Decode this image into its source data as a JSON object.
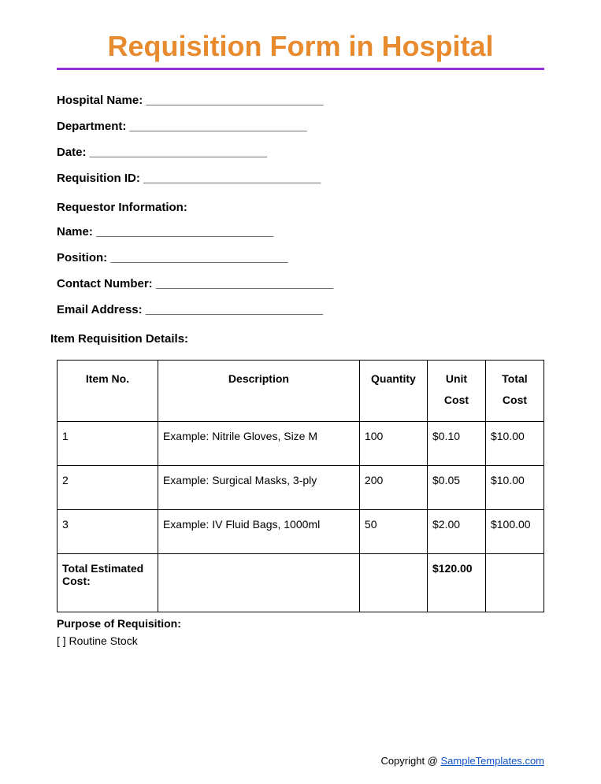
{
  "title": "Requisition Form in Hospital",
  "title_color": "#e88b2e",
  "divider_color": "#9b2fd6",
  "fields": {
    "hospital_name": "Hospital Name: ___________________________",
    "department": "Department: ___________________________",
    "date": "Date: ___________________________",
    "requisition_id": "Requisition ID: ___________________________"
  },
  "requestor": {
    "header": "Requestor Information:",
    "name": "Name: ___________________________",
    "position": "Position: ___________________________",
    "contact": "Contact Number: ___________________________",
    "email": "Email Address: ___________________________"
  },
  "details_header": "Item Requisition Details:",
  "table": {
    "columns": [
      "Item No.",
      "Description",
      "Quantity",
      "Unit Cost",
      "Total Cost"
    ],
    "rows": [
      [
        "1",
        "Example: Nitrile Gloves, Size M",
        "100",
        "$0.10",
        "$10.00"
      ],
      [
        "2",
        "Example: Surgical Masks, 3-ply",
        "200",
        "$0.05",
        "$10.00"
      ],
      [
        "3",
        "Example: IV Fluid Bags, 1000ml",
        "50",
        "$2.00",
        "$100.00"
      ]
    ],
    "total_label": "Total Estimated Cost:",
    "total_value": "$120.00"
  },
  "purpose": {
    "header": "Purpose of Requisition:",
    "option1": "[ ] Routine Stock"
  },
  "footer": {
    "prefix": "Copyright @ ",
    "link_text": "SampleTemplates.com"
  }
}
